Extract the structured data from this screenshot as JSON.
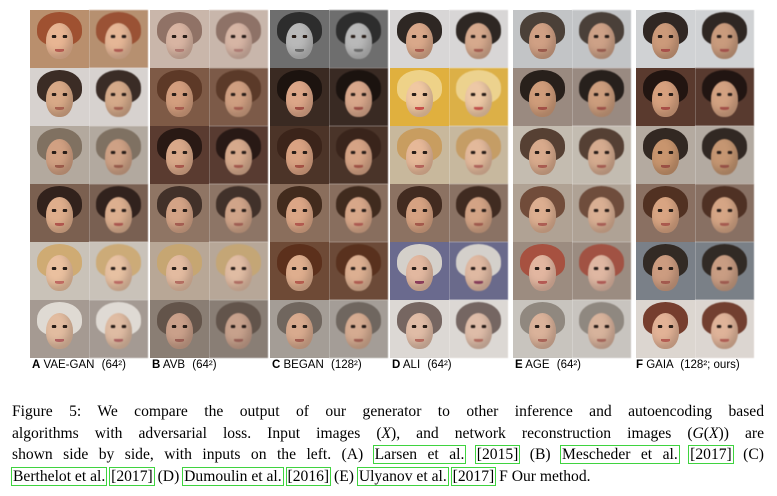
{
  "panels": [
    {
      "letter": "A",
      "name": "VAE-GAN",
      "res": "(64²)",
      "rows": [
        {
          "bg": "#b98f6d",
          "hair": "#9c4a2a",
          "skin": "#e8b593",
          "lip": "#b45a50"
        },
        {
          "bg": "#d7d2cf",
          "hair": "#2a1a12",
          "skin": "#d8a987",
          "lip": "#a6604f"
        },
        {
          "bg": "#b3a99e",
          "hair": "#7a6a5a",
          "skin": "#d1a082",
          "lip": "#9b5b4a"
        },
        {
          "bg": "#7b6050",
          "hair": "#2a1c16",
          "skin": "#dfae8c",
          "lip": "#b0564e"
        },
        {
          "bg": "#c9c2b8",
          "hair": "#cfa86c",
          "skin": "#eac09f",
          "lip": "#c06a62"
        },
        {
          "bg": "#a59a92",
          "hair": "#e6e1da",
          "skin": "#e2bca0",
          "lip": "#b06060"
        }
      ]
    },
    {
      "letter": "B",
      "name": "AVB",
      "res": "(64²)",
      "rows": [
        {
          "bg": "#c9b6aa",
          "hair": "#8a6a5e",
          "skin": "#d8b4a2",
          "lip": "#b07a72"
        },
        {
          "bg": "#7e5a46",
          "hair": "#5a3524",
          "skin": "#d39e7e",
          "lip": "#a85c4e"
        },
        {
          "bg": "#5a3b30",
          "hair": "#241612",
          "skin": "#d9a889",
          "lip": "#a8584c"
        },
        {
          "bg": "#8f7564",
          "hair": "#3a2a22",
          "skin": "#d3a386",
          "lip": "#a45e52"
        },
        {
          "bg": "#b8a796",
          "hair": "#c8a66e",
          "skin": "#e3bba0",
          "lip": "#b46e62"
        },
        {
          "bg": "#8a7e74",
          "hair": "#5e5046",
          "skin": "#caa08a",
          "lip": "#9a5e54"
        }
      ]
    },
    {
      "letter": "C",
      "name": "BEGAN",
      "res": "(128²)",
      "rows": [
        {
          "bg": "#6e6e6e",
          "hair": "#262626",
          "skin": "#b9b9b9",
          "lip": "#6a6a6a"
        },
        {
          "bg": "#3a2a22",
          "hair": "#1a110d",
          "skin": "#dca688",
          "lip": "#9e4c42"
        },
        {
          "bg": "#4c3428",
          "hair": "#3a2218",
          "skin": "#d9a282",
          "lip": "#a45244"
        },
        {
          "bg": "#8a6e5c",
          "hair": "#3a2416",
          "skin": "#dba686",
          "lip": "#b25a50"
        },
        {
          "bg": "#6e4a36",
          "hair": "#5a2e1a",
          "skin": "#dfae8e",
          "lip": "#b45c4e"
        },
        {
          "bg": "#a49d96",
          "hair": "#6a6058",
          "skin": "#d8aa8e",
          "lip": "#a25c50"
        }
      ]
    },
    {
      "letter": "D",
      "name": "ALI",
      "res": "(64²)",
      "rows": [
        {
          "bg": "#d8d6d6",
          "hair": "#1c1410",
          "skin": "#d9a88a",
          "lip": "#a85a4e"
        },
        {
          "bg": "#e0b03e",
          "hair": "#f0d690",
          "skin": "#f0c8a2",
          "lip": "#c8504a"
        },
        {
          "bg": "#c8b89c",
          "hair": "#c89a5a",
          "skin": "#e6b898",
          "lip": "#b4645a"
        },
        {
          "bg": "#8c7262",
          "hair": "#3a241a",
          "skin": "#d6a282",
          "lip": "#a45a4c"
        },
        {
          "bg": "#6a6a8e",
          "hair": "#e0dcd0",
          "skin": "#e2b8a0",
          "lip": "#8a3c5a"
        },
        {
          "bg": "#dcd8d4",
          "hair": "#6a5a54",
          "skin": "#e0bca6",
          "lip": "#b46a5e"
        }
      ]
    },
    {
      "letter": "E",
      "name": "AGE",
      "res": "(64²)",
      "rows": [
        {
          "bg": "#c2c4c6",
          "hair": "#3e3228",
          "skin": "#d0a084",
          "lip": "#9a5a4c"
        },
        {
          "bg": "#9a8a80",
          "hair": "#1c1410",
          "skin": "#cf9c7a",
          "lip": "#a25046"
        },
        {
          "bg": "#c4bcb0",
          "hair": "#4a3226",
          "skin": "#d8aa8c",
          "lip": "#a85c50"
        },
        {
          "bg": "#b0a294",
          "hair": "#6a4230",
          "skin": "#dcae90",
          "lip": "#ac5e54"
        },
        {
          "bg": "#9c8c80",
          "hair": "#a84a38",
          "skin": "#e2b6a0",
          "lip": "#b45a54"
        },
        {
          "bg": "#c8c4be",
          "hair": "#8a8278",
          "skin": "#dab29a",
          "lip": "#a86458"
        }
      ]
    },
    {
      "letter": "F",
      "name": "GAIA",
      "res": "(128²; ours)",
      "rows": [
        {
          "bg": "#d0d2d4",
          "hair": "#1e1410",
          "skin": "#cc9a7a",
          "lip": "#a8504a"
        },
        {
          "bg": "#5a3a2e",
          "hair": "#1c120e",
          "skin": "#d6a07e",
          "lip": "#a84e46"
        },
        {
          "bg": "#b4aaa0",
          "hair": "#241a14",
          "skin": "#c8956e",
          "lip": "#9a5044"
        },
        {
          "bg": "#8a7062",
          "hair": "#4a2a1c",
          "skin": "#d8a482",
          "lip": "#aa5a4e"
        },
        {
          "bg": "#7a8088",
          "hair": "#2a201a",
          "skin": "#cc9c80",
          "lip": "#a25a4e"
        },
        {
          "bg": "#dcd6d0",
          "hair": "#6a2e1c",
          "skin": "#e2b296",
          "lip": "#b45c52"
        }
      ]
    }
  ],
  "caption": {
    "line1": "Figure 5:   We compare the output of our generator to other inference and autoencoding based",
    "line2_a": "algorithms with adversarial loss. Input images (",
    "line2_m1": "X",
    "line2_b": "), and network reconstruction images (",
    "line2_m2": "G",
    "line2_c": "(",
    "line2_m3": "X",
    "line2_d": ")) are",
    "line3_a": "shown side by side, with inputs on the left. (A) ",
    "ref_larsen": "Larsen et al.",
    "ref_larsen_year": "[2015]",
    "line3_b": " (B) ",
    "ref_mescheder": "Mescheder et al.",
    "ref_mescheder_year": "[2017]",
    "line3_c": " (C)",
    "ref_berthelot": "Berthelot et al.",
    "ref_berthelot_year": "[2017]",
    "line4_a": " (D) ",
    "ref_dumoulin": "Dumoulin et al.",
    "ref_dumoulin_year": "[2016]",
    "line4_b": " (E) ",
    "ref_ulyanov": "Ulyanov et al.",
    "ref_ulyanov_year": "[2017]",
    "line4_c": " F Our method."
  }
}
